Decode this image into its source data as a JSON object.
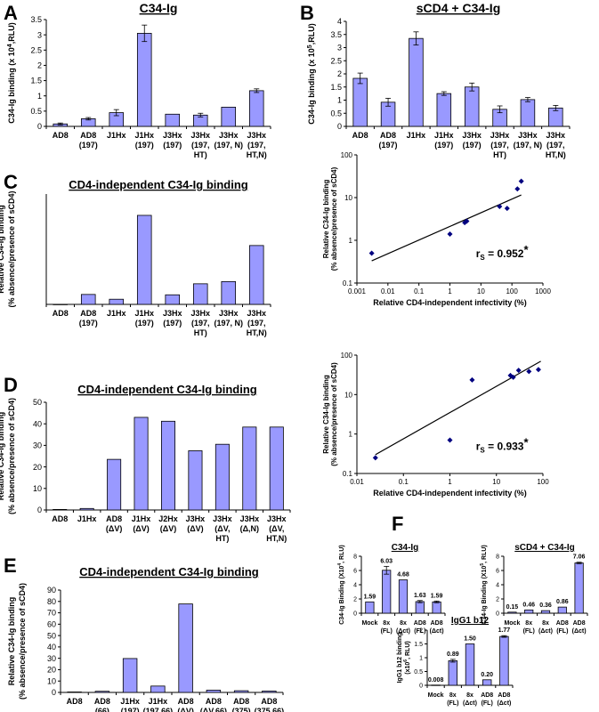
{
  "chart_data": [
    {
      "panel": "A",
      "type": "bar",
      "title": "C34-Ig",
      "ylabel": "C34-Ig binding  (x 10",
      "ylabel_exp": "4",
      "ylabel_tail": ",RLU)",
      "ylim": [
        0,
        3.5
      ],
      "yticks": [
        0,
        0.5,
        1,
        1.5,
        2,
        2.5,
        3,
        3.5
      ],
      "categories": [
        [
          "AD8"
        ],
        [
          "AD8",
          "(197)"
        ],
        [
          "J1Hx"
        ],
        [
          "J1Hx",
          "(197)"
        ],
        [
          "J3Hx",
          "(197)"
        ],
        [
          "J3Hx",
          "(197,",
          "HT)"
        ],
        [
          "J3Hx",
          "(197, N)"
        ],
        [
          "J3Hx",
          "(197,",
          "HT,N)"
        ]
      ],
      "values": [
        0.08,
        0.25,
        0.45,
        3.05,
        0.4,
        0.37,
        0.63,
        1.17
      ],
      "errors": [
        0.03,
        0.04,
        0.1,
        0.27,
        0,
        0.06,
        0,
        0.06
      ]
    },
    {
      "panel": "B",
      "type": "bar",
      "title": "sCD4 + C34-Ig",
      "ylabel": "C34-Ig binding  (x 10",
      "ylabel_exp": "5",
      "ylabel_tail": ",RLU)",
      "ylim": [
        0,
        4
      ],
      "yticks": [
        0,
        0.5,
        1,
        1.5,
        2,
        2.5,
        3,
        3.5,
        4
      ],
      "categories": [
        [
          "AD8"
        ],
        [
          "AD8",
          "(197)"
        ],
        [
          "J1Hx"
        ],
        [
          "J1Hx",
          "(197)"
        ],
        [
          "J3Hx",
          "(197)"
        ],
        [
          "J3Hx",
          "(197,",
          "HT)"
        ],
        [
          "J3Hx",
          "(197, N)"
        ],
        [
          "J3Hx",
          "(197,",
          "HT,N)"
        ]
      ],
      "values": [
        1.83,
        0.92,
        3.35,
        1.25,
        1.5,
        0.65,
        1.02,
        0.7
      ],
      "errors": [
        0.2,
        0.15,
        0.25,
        0.07,
        0.15,
        0.13,
        0.08,
        0.1
      ]
    },
    {
      "panel": "C",
      "type": "bar",
      "title": "CD4-independent C34-Ig binding",
      "ylabel": "Relative C34-Ig binding",
      "ylabel2": "(% absence/presence of sCD4)",
      "ylim": [
        0,
        30
      ],
      "yticks": [],
      "categories": [
        [
          "AD8"
        ],
        [
          "AD8",
          "(197)"
        ],
        [
          "J1Hx"
        ],
        [
          "J1Hx",
          "(197)"
        ],
        [
          "J3Hx",
          "(197)"
        ],
        [
          "J3Hx",
          "(197,",
          "HT)"
        ],
        [
          "J3Hx",
          "(197, N)"
        ],
        [
          "J3Hx",
          "(197,",
          "HT,N)"
        ]
      ],
      "values": [
        0.02,
        2.7,
        1.4,
        24.2,
        2.6,
        5.6,
        6.2,
        16
      ]
    },
    {
      "panel": "C-right",
      "type": "scatter",
      "xlabel": "Relative CD4-independent infectivity (%)",
      "ylabel": "Relative C34-Ig binding",
      "ylabel2": "(% absence/presence of sCD4)",
      "xscale": "log",
      "yscale": "log",
      "xlim": [
        0.001,
        1000
      ],
      "ylim": [
        0.1,
        100
      ],
      "xticks": [
        0.001,
        0.01,
        0.1,
        1,
        10,
        100,
        1000
      ],
      "xtick_labels": [
        "0.001",
        "0.01",
        "0.1",
        "1",
        "10",
        "100",
        "1000"
      ],
      "yticks": [
        0.1,
        1,
        10,
        100
      ],
      "ytick_labels": [
        "0.1",
        "1",
        "10",
        "100"
      ],
      "x": [
        0.003,
        1,
        3,
        3.5,
        40,
        70,
        150,
        200
      ],
      "y": [
        0.5,
        1.4,
        2.6,
        2.8,
        6.2,
        5.6,
        16,
        24.2
      ],
      "fit_line": [
        [
          0.003,
          0.33
        ],
        [
          200,
          11.5
        ]
      ],
      "stat_label": "r",
      "stat_sub": "S",
      "stat_value": " = 0.952",
      "stat_mark": "*"
    },
    {
      "panel": "D",
      "type": "bar",
      "title": "CD4-independent C34-Ig binding",
      "ylabel": "Relative C34-Ig binding",
      "ylabel2": "(% absence/presence of sCD4)",
      "ylim": [
        0,
        50
      ],
      "yticks": [
        0,
        10,
        20,
        30,
        40,
        50
      ],
      "categories": [
        [
          "AD8"
        ],
        [
          "J1Hx"
        ],
        [
          "AD8",
          "(ΔV)"
        ],
        [
          "J1Hx",
          "(ΔV)"
        ],
        [
          "J2Hx",
          "(ΔV)"
        ],
        [
          "J3Hx",
          "(ΔV)"
        ],
        [
          "J3Hx",
          "(ΔV,",
          "HT)"
        ],
        [
          "J3Hx",
          "(Δ,N)"
        ],
        [
          "J3Hx",
          "(ΔV,",
          "HT,N)"
        ]
      ],
      "values": [
        0.25,
        0.7,
        23.5,
        43,
        41.2,
        27.5,
        30.5,
        38.5,
        38.5
      ]
    },
    {
      "panel": "D-right",
      "type": "scatter",
      "xlabel": "Relative CD4-independent infectivity (%)",
      "ylabel": "Relative C34-Ig binding",
      "ylabel2": "(% absence/presence of sCD4)",
      "xscale": "log",
      "yscale": "log",
      "xlim": [
        0.01,
        100
      ],
      "ylim": [
        0.1,
        100
      ],
      "xticks": [
        0.01,
        0.1,
        1,
        10,
        100
      ],
      "xtick_labels": [
        "0.01",
        "0.1",
        "1",
        "10",
        "100"
      ],
      "yticks": [
        0.1,
        1,
        10,
        100
      ],
      "ytick_labels": [
        "0.1",
        "1",
        "10",
        "100"
      ],
      "x": [
        0.025,
        1,
        3,
        20,
        23,
        30,
        50,
        80
      ],
      "y": [
        0.25,
        0.7,
        23.5,
        30.5,
        27.5,
        41.2,
        38.5,
        43
      ],
      "fit_line": [
        [
          0.025,
          0.3
        ],
        [
          90,
          70
        ]
      ],
      "stat_label": "r",
      "stat_sub": "S",
      "stat_value": " = 0.933",
      "stat_mark": "*"
    },
    {
      "panel": "E",
      "type": "bar",
      "title": "CD4-independent C34-Ig binding",
      "ylabel": "Relative C34-Ig binding",
      "ylabel2": "(% absence/presence of sCD4)",
      "ylim": [
        0,
        90
      ],
      "yticks": [
        0,
        10,
        20,
        30,
        40,
        50,
        60,
        70,
        80,
        90
      ],
      "categories": [
        [
          "AD8"
        ],
        [
          "AD8",
          "(66)"
        ],
        [
          "J1Hx",
          "(197)"
        ],
        [
          "J1Hx",
          "(197,66)"
        ],
        [
          "AD8",
          "(ΔV)"
        ],
        [
          "AD8",
          "(ΔV,66)"
        ],
        [
          "AD8",
          "(375)"
        ],
        [
          "AD8",
          "(375,66)"
        ]
      ],
      "values": [
        0.4,
        1.0,
        29.8,
        5.6,
        77.8,
        2.0,
        1.5,
        1.2
      ]
    },
    {
      "panel": "F1",
      "type": "bar",
      "title": "C34-Ig",
      "ylabel": "C34-Ig Binding (X10",
      "ylabel_exp": "4",
      "ylabel_tail": ", RLU)",
      "ylim": [
        0,
        8
      ],
      "yticks": [
        0,
        2,
        4,
        6,
        8
      ],
      "categories": [
        [
          "Mock"
        ],
        [
          "8x",
          "(FL)"
        ],
        [
          "8x",
          "(Δct)"
        ],
        [
          "AD8",
          "(FL)"
        ],
        [
          "AD8",
          "(Δct)"
        ]
      ],
      "values": [
        1.59,
        6.03,
        4.68,
        1.63,
        1.59
      ],
      "value_labels": [
        "1.59",
        "6.03",
        "4.68",
        "1.63",
        "1.59"
      ],
      "errors": [
        0,
        0.55,
        0,
        0.15,
        0.12
      ]
    },
    {
      "panel": "F2",
      "type": "bar",
      "title": "sCD4 + C34-Ig",
      "ylabel": "C34-Ig Binding (X10",
      "ylabel_exp": "5",
      "ylabel_tail": ", RLU)",
      "ylim": [
        0,
        8
      ],
      "yticks": [
        0,
        2,
        4,
        6,
        8
      ],
      "categories": [
        [
          "Mock"
        ],
        [
          "8x",
          "(FL)"
        ],
        [
          "8x",
          "(Δct)"
        ],
        [
          "AD8",
          "(FL)"
        ],
        [
          "AD8",
          "(Δct)"
        ]
      ],
      "values": [
        0.15,
        0.46,
        0.36,
        0.86,
        7.06
      ],
      "value_labels": [
        "0.15",
        "0.46",
        "0.36",
        "0.86",
        "7.06"
      ],
      "errors": [
        0,
        0,
        0,
        0,
        0.1
      ]
    },
    {
      "panel": "F3",
      "type": "bar",
      "title": "IgG1 b12",
      "ylabel": "IgG1 b12 binding",
      "ylabel2": "(x10",
      "ylabel2_exp": "6",
      "ylabel2_tail": ", RLU)",
      "ylim": [
        0,
        2
      ],
      "yticks": [
        0,
        0.5,
        1,
        1.5,
        2
      ],
      "categories": [
        [
          "Mock"
        ],
        [
          "8x",
          "(FL)"
        ],
        [
          "8x",
          "(Δct)"
        ],
        [
          "AD8",
          "(FL)"
        ],
        [
          "AD8",
          "(Δct)"
        ]
      ],
      "values": [
        0.008,
        0.89,
        1.5,
        0.2,
        1.77
      ],
      "value_labels": [
        "0.008",
        "0.89",
        "1.50",
        "0.20",
        "1.77"
      ],
      "errors": [
        0,
        0.05,
        0,
        0,
        0.03
      ]
    }
  ],
  "panel_letters": [
    "A",
    "B",
    "C",
    "D",
    "E",
    "F"
  ],
  "colors": {
    "bar_fill": "#9999ff",
    "bar_stroke": "#000000",
    "point": "#000080",
    "axis": "#000000"
  }
}
